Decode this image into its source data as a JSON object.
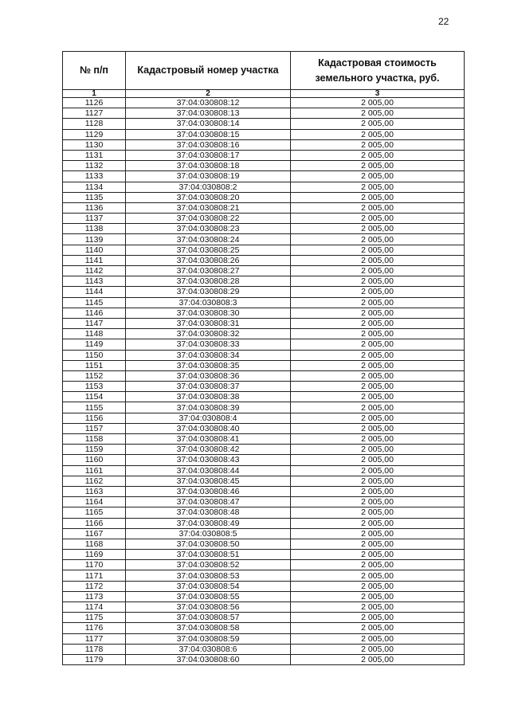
{
  "page_number": "22",
  "headers": [
    "№ п/п",
    "Кадастровый номер участка",
    "Кадастровая стоимость земельного участка, руб."
  ],
  "column_numbers": [
    "1",
    "2",
    "3"
  ],
  "rows": [
    [
      "1126",
      "37:04:030808:12",
      "2 005,00"
    ],
    [
      "1127",
      "37:04:030808:13",
      "2 005,00"
    ],
    [
      "1128",
      "37:04:030808:14",
      "2 005,00"
    ],
    [
      "1129",
      "37:04:030808:15",
      "2 005,00"
    ],
    [
      "1130",
      "37:04:030808:16",
      "2 005,00"
    ],
    [
      "1131",
      "37:04:030808:17",
      "2 005,00"
    ],
    [
      "1132",
      "37:04:030808:18",
      "2 005,00"
    ],
    [
      "1133",
      "37:04:030808:19",
      "2 005,00"
    ],
    [
      "1134",
      "37:04:030808:2",
      "2 005,00"
    ],
    [
      "1135",
      "37:04:030808:20",
      "2 005,00"
    ],
    [
      "1136",
      "37:04:030808:21",
      "2 005,00"
    ],
    [
      "1137",
      "37:04:030808:22",
      "2 005,00"
    ],
    [
      "1138",
      "37:04:030808:23",
      "2 005,00"
    ],
    [
      "1139",
      "37:04:030808:24",
      "2 005,00"
    ],
    [
      "1140",
      "37:04:030808:25",
      "2 005,00"
    ],
    [
      "1141",
      "37:04:030808:26",
      "2 005,00"
    ],
    [
      "1142",
      "37:04:030808:27",
      "2 005,00"
    ],
    [
      "1143",
      "37:04:030808:28",
      "2 005,00"
    ],
    [
      "1144",
      "37:04:030808:29",
      "2 005,00"
    ],
    [
      "1145",
      "37:04:030808:3",
      "2 005,00"
    ],
    [
      "1146",
      "37:04:030808:30",
      "2 005,00"
    ],
    [
      "1147",
      "37:04:030808:31",
      "2 005,00"
    ],
    [
      "1148",
      "37:04:030808:32",
      "2 005,00"
    ],
    [
      "1149",
      "37:04:030808:33",
      "2 005,00"
    ],
    [
      "1150",
      "37:04:030808:34",
      "2 005,00"
    ],
    [
      "1151",
      "37:04:030808:35",
      "2 005,00"
    ],
    [
      "1152",
      "37:04:030808:36",
      "2 005,00"
    ],
    [
      "1153",
      "37:04:030808:37",
      "2 005,00"
    ],
    [
      "1154",
      "37:04:030808:38",
      "2 005,00"
    ],
    [
      "1155",
      "37:04:030808:39",
      "2 005,00"
    ],
    [
      "1156",
      "37:04:030808:4",
      "2 005,00"
    ],
    [
      "1157",
      "37:04:030808:40",
      "2 005,00"
    ],
    [
      "1158",
      "37:04:030808:41",
      "2 005,00"
    ],
    [
      "1159",
      "37:04:030808:42",
      "2 005,00"
    ],
    [
      "1160",
      "37:04:030808:43",
      "2 005,00"
    ],
    [
      "1161",
      "37:04:030808:44",
      "2 005,00"
    ],
    [
      "1162",
      "37:04:030808:45",
      "2 005,00"
    ],
    [
      "1163",
      "37:04:030808:46",
      "2 005,00"
    ],
    [
      "1164",
      "37:04:030808:47",
      "2 005,00"
    ],
    [
      "1165",
      "37:04:030808:48",
      "2 005,00"
    ],
    [
      "1166",
      "37:04:030808:49",
      "2 005,00"
    ],
    [
      "1167",
      "37:04:030808:5",
      "2 005,00"
    ],
    [
      "1168",
      "37:04:030808:50",
      "2 005,00"
    ],
    [
      "1169",
      "37:04:030808:51",
      "2 005,00"
    ],
    [
      "1170",
      "37:04:030808:52",
      "2 005,00"
    ],
    [
      "1171",
      "37:04:030808:53",
      "2 005,00"
    ],
    [
      "1172",
      "37:04:030808:54",
      "2 005,00"
    ],
    [
      "1173",
      "37:04:030808:55",
      "2 005,00"
    ],
    [
      "1174",
      "37:04:030808:56",
      "2 005,00"
    ],
    [
      "1175",
      "37:04:030808:57",
      "2 005,00"
    ],
    [
      "1176",
      "37:04:030808:58",
      "2 005,00"
    ],
    [
      "1177",
      "37:04:030808:59",
      "2 005,00"
    ],
    [
      "1178",
      "37:04:030808:6",
      "2 005,00"
    ],
    [
      "1179",
      "37:04:030808:60",
      "2 005,00"
    ]
  ]
}
